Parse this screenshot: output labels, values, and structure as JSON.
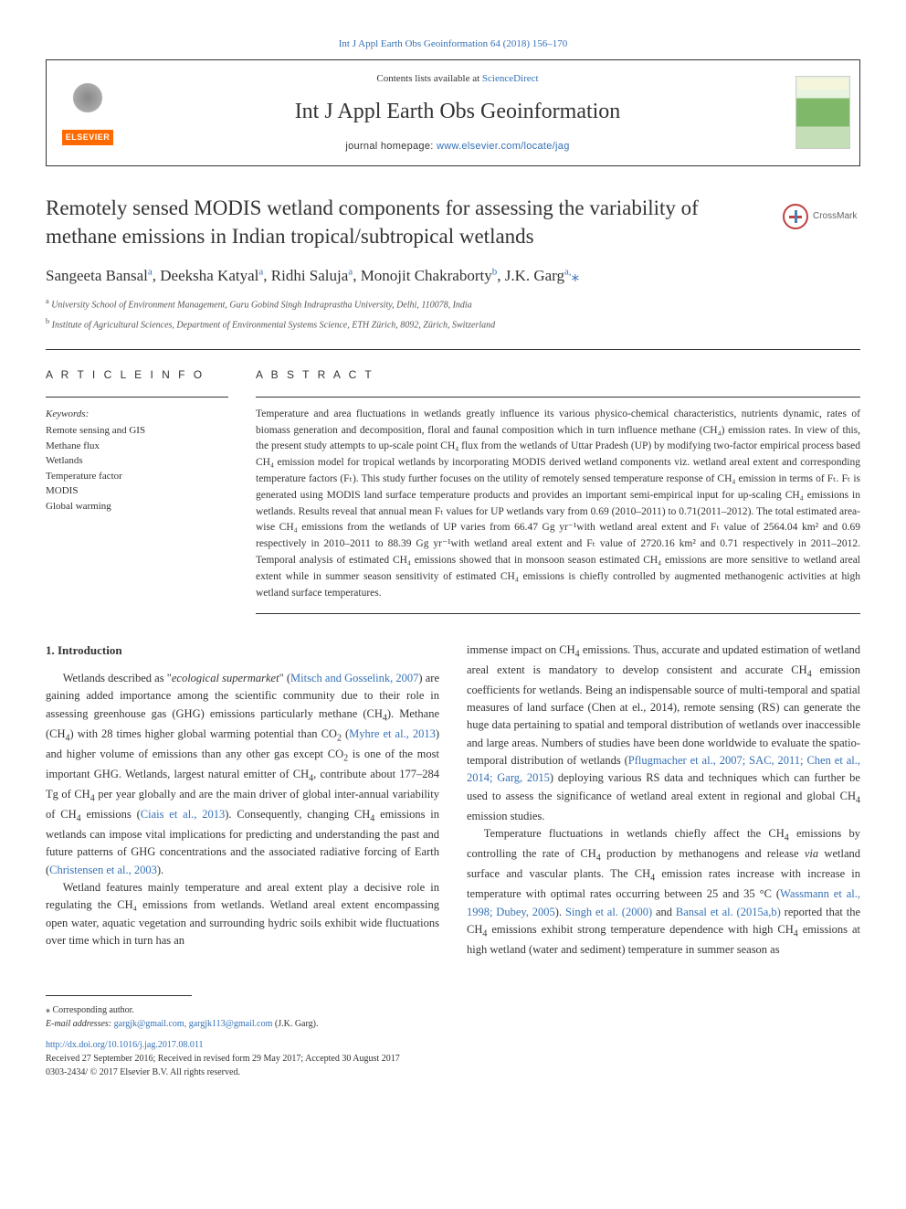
{
  "top_link": {
    "text": "Int J Appl Earth Obs Geoinformation 64 (2018) 156–170",
    "href": "#"
  },
  "header": {
    "contents_prefix": "Contents lists available at ",
    "contents_link": "ScienceDirect",
    "journal_name": "Int J Appl Earth Obs Geoinformation",
    "homepage_prefix": "journal homepage: ",
    "homepage_link": "www.elsevier.com/locate/jag",
    "elsevier": "ELSEVIER"
  },
  "crossmark": "CrossMark",
  "title": "Remotely sensed MODIS wetland components for assessing the variability of methane emissions in Indian tropical/subtropical wetlands",
  "authors_html": "Sangeeta Bansal<sup>a</sup>, Deeksha Katyal<sup>a</sup>, Ridhi Saluja<sup>a</sup>, Monojit Chakraborty<sup>b</sup>, J.K. Garg<sup>a,</sup>",
  "author_mark": "⁎",
  "affiliations": [
    {
      "sup": "a",
      "text": "University School of Environment Management, Guru Gobind Singh Indraprastha University, Delhi, 110078, India"
    },
    {
      "sup": "b",
      "text": "Institute of Agricultural Sciences, Department of Environmental Systems Science, ETH Zürich, 8092, Zürich, Switzerland"
    }
  ],
  "article_info_heading": "A R T I C L E  I N F O",
  "abstract_heading": "A B S T R A C T",
  "keywords_label": "Keywords:",
  "keywords": [
    "Remote sensing and GIS",
    "Methane flux",
    "Wetlands",
    "Temperature factor",
    "MODIS",
    "Global warming"
  ],
  "abstract": "Temperature and area fluctuations in wetlands greatly influence its various physico-chemical characteristics, nutrients dynamic, rates of biomass generation and decomposition, floral and faunal composition which in turn influence methane (CH₄) emission rates. In view of this, the present study attempts to up-scale point CH₄ flux from the wetlands of Uttar Pradesh (UP) by modifying two-factor empirical process based CH₄ emission model for tropical wetlands by incorporating MODIS derived wetland components viz. wetland areal extent and corresponding temperature factors (Fₜ). This study further focuses on the utility of remotely sensed temperature response of CH₄ emission in terms of Fₜ. Fₜ is generated using MODIS land surface temperature products and provides an important semi-empirical input for up-scaling CH₄ emissions in wetlands. Results reveal that annual mean Fₜ values for UP wetlands vary from 0.69 (2010–2011) to 0.71(2011–2012). The total estimated area-wise CH₄ emissions from the wetlands of UP varies from 66.47 Gg yr⁻¹with wetland areal extent and Fₜ value of 2564.04 km² and 0.69 respectively in 2010–2011 to 88.39 Gg yr⁻¹with wetland areal extent and Fₜ value of 2720.16 km² and 0.71 respectively in 2011–2012. Temporal analysis of estimated CH₄ emissions showed that in monsoon season estimated CH₄ emissions are more sensitive to wetland areal extent while in summer season sensitivity of estimated CH₄ emissions is chiefly controlled by augmented methanogenic activities at high wetland surface temperatures.",
  "intro_heading": "1. Introduction",
  "intro_p1": "Wetlands described as \"ecological supermarket\" (Mitsch and Gosselink, 2007) are gaining added importance among the scientific community due to their role in assessing greenhouse gas (GHG) emissions particularly methane (CH₄). Methane (CH₄) with 28 times higher global warming potential than CO₂ (Myhre et al., 2013) and higher volume of emissions than any other gas except CO₂ is one of the most important GHG. Wetlands, largest natural emitter of CH₄, contribute about 177–284 Tg of CH₄ per year globally and are the main driver of global inter-annual variability of CH₄ emissions (Ciais et al., 2013). Consequently, changing CH₄ emissions in wetlands can impose vital implications for predicting and understanding the past and future patterns of GHG concentrations and the associated radiative forcing of Earth (Christensen et al., 2003).",
  "intro_p2": "Wetland features mainly temperature and areal extent play a decisive role in regulating the CH₄ emissions from wetlands. Wetland areal extent encompassing open water, aquatic vegetation and surrounding hydric soils exhibit wide fluctuations over time which in turn has an",
  "intro_p3": "immense impact on CH₄ emissions. Thus, accurate and updated estimation of wetland areal extent is mandatory to develop consistent and accurate CH₄ emission coefficients for wetlands. Being an indispensable source of multi-temporal and spatial measures of land surface (Chen at el., 2014), remote sensing (RS) can generate the huge data pertaining to spatial and temporal distribution of wetlands over inaccessible and large areas. Numbers of studies have been done worldwide to evaluate the spatio- temporal distribution of wetlands (Pflugmacher et al., 2007; SAC, 2011; Chen et al., 2014; Garg, 2015) deploying various RS data and techniques which can further be used to assess the significance of wetland areal extent in regional and global CH₄ emission studies.",
  "intro_p4": "Temperature fluctuations in wetlands chiefly affect the CH₄ emissions by controlling the rate of CH₄ production by methanogens and release via wetland surface and vascular plants. The CH₄ emission rates increase with increase in temperature with optimal rates occurring between 25 and 35 °C (Wassmann et al., 1998; Dubey, 2005). Singh et al. (2000) and Bansal et al. (2015a,b) reported that the CH₄ emissions exhibit strong temperature dependence with high CH₄ emissions at high wetland (water and sediment) temperature in summer season as",
  "footer": {
    "corr": "⁎ Corresponding author.",
    "email_label": "E-mail addresses:",
    "emails": "gargjk@gmail.com, gargjk113@gmail.com",
    "email_name": "(J.K. Garg).",
    "doi": "http://dx.doi.org/10.1016/j.jag.2017.08.011",
    "received": "Received 27 September 2016; Received in revised form 29 May 2017; Accepted 30 August 2017",
    "issn": "0303-2434/ © 2017 Elsevier B.V. All rights reserved."
  },
  "links": {
    "mitsch": "Mitsch and Gosselink, 2007",
    "myhre": "Myhre et al., 2013",
    "ciais": "Ciais et al., 2013",
    "christensen": "Christensen et al., 2003",
    "pflug": "Pflugmacher et al., 2007; SAC, 2011; Chen et al., 2014; Garg, 2015",
    "wassmann": "Wassmann et al., 1998; Dubey, 2005",
    "singh": "Singh et al. (2000)",
    "bansal": "Bansal et al. (2015a,b)"
  }
}
